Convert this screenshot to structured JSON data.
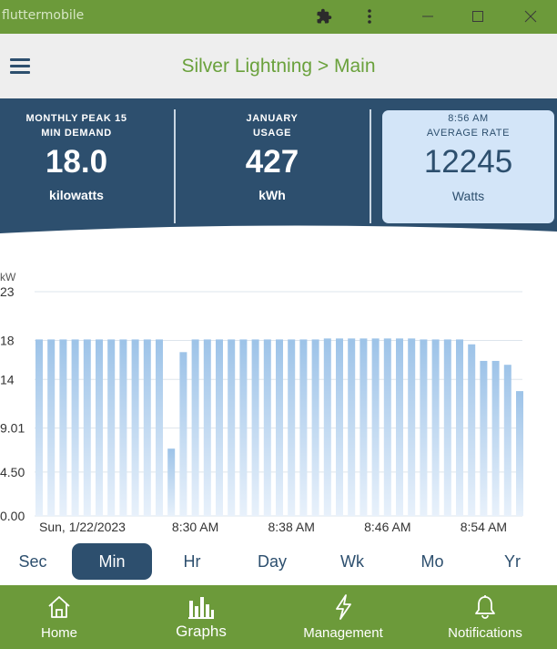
{
  "window": {
    "title": "fluttermobile",
    "icons": [
      "extension-icon",
      "more-vert-icon",
      "minimize-icon",
      "maximize-icon",
      "close-icon"
    ]
  },
  "header": {
    "title": "Silver Lightning > Main",
    "menu_icon": "hamburger-menu-icon"
  },
  "stats": {
    "peak": {
      "label_line1": "MONTHLY PEAK 15",
      "label_line2": "MIN DEMAND",
      "value": "18.0",
      "unit": "kilowatts"
    },
    "usage": {
      "label_line1": "JANUARY",
      "label_line2": "USAGE",
      "value": "427",
      "unit": "kWh"
    },
    "rate": {
      "label_line1": "8:56 AM",
      "label_line2": "AVERAGE RATE",
      "value": "12245",
      "unit": "Watts"
    }
  },
  "chart_data": {
    "type": "bar",
    "ylabel": "kW",
    "y_ticks": [
      "23",
      "18",
      "14",
      "9.01",
      "4.50",
      "0.00"
    ],
    "y_tick_values": [
      23,
      18,
      14,
      9.01,
      4.5,
      0
    ],
    "ylim": [
      0,
      23
    ],
    "x_tick_labels": [
      "Sun, 1/22/2023",
      "8:30 AM",
      "8:38 AM",
      "8:46 AM",
      "8:54 AM"
    ],
    "x_tick_indices": [
      0,
      13,
      21,
      29,
      37
    ],
    "grid": true,
    "values": [
      18.1,
      18.1,
      18.1,
      18.1,
      18.1,
      18.1,
      18.1,
      18.1,
      18.1,
      18.1,
      18.1,
      6.9,
      16.8,
      18.1,
      18.1,
      18.1,
      18.1,
      18.1,
      18.1,
      18.1,
      18.1,
      18.1,
      18.1,
      18.1,
      18.2,
      18.2,
      18.2,
      18.2,
      18.2,
      18.2,
      18.2,
      18.2,
      18.1,
      18.1,
      18.1,
      18.1,
      17.6,
      15.9,
      15.9,
      15.5,
      12.8
    ],
    "bar_color": "#9dc3e8"
  },
  "tabs": {
    "active": "Min",
    "items": [
      "Sec",
      "Min",
      "Hr",
      "Day",
      "Wk",
      "Mo",
      "Yr"
    ]
  },
  "nav": {
    "active": "Graphs",
    "items": [
      {
        "label": "Home",
        "icon": "home-icon"
      },
      {
        "label": "Graphs",
        "icon": "bar-chart-icon"
      },
      {
        "label": "Management",
        "icon": "lightning-icon"
      },
      {
        "label": "Notifications",
        "icon": "bell-icon"
      }
    ]
  },
  "colors": {
    "titlebar": "#6c9a3a",
    "panel": "#2d4f6e",
    "highlight_card": "#d3e5f8",
    "accent_text": "#6aa13c"
  }
}
